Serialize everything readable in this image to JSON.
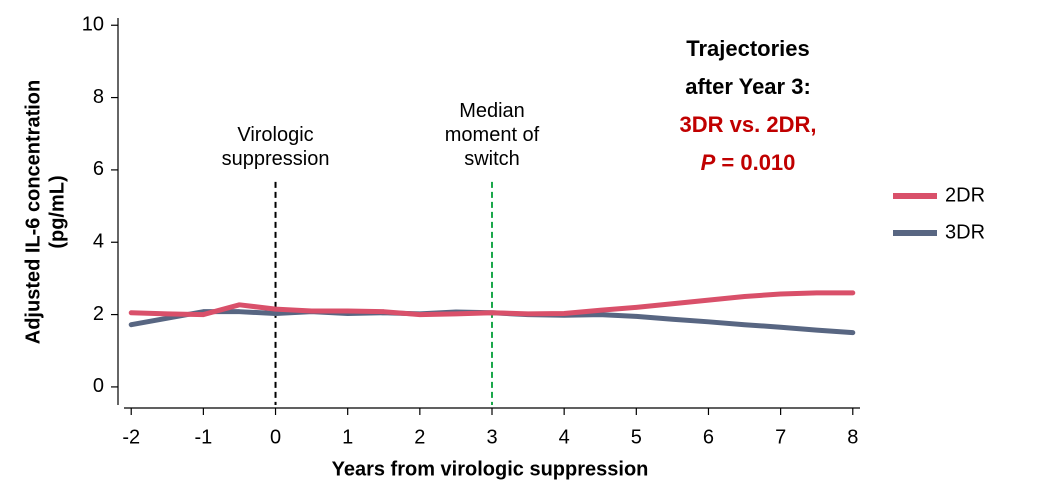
{
  "chart_data": {
    "type": "line",
    "xlabel": "Years from virologic suppression",
    "ylabel": [
      "Adjusted IL-6 concentration",
      "(pg/mL)"
    ],
    "xlim": [
      -2.1,
      8.1
    ],
    "ylim": [
      -0.5,
      10.2
    ],
    "xticks": [
      -2,
      -1,
      0,
      1,
      2,
      3,
      4,
      5,
      6,
      7,
      8
    ],
    "yticks": [
      0,
      2,
      4,
      6,
      8,
      10
    ],
    "x": [
      -2,
      -1.5,
      -1,
      -0.5,
      0,
      0.5,
      1,
      1.5,
      2,
      2.5,
      3,
      3.5,
      4,
      4.5,
      5,
      5.5,
      6,
      6.5,
      7,
      7.5,
      8
    ],
    "series": [
      {
        "name": "2DR",
        "color": "#d9506a",
        "values": [
          2.05,
          2.02,
          2.0,
          2.27,
          2.15,
          2.1,
          2.1,
          2.08,
          2.0,
          2.02,
          2.05,
          2.02,
          2.03,
          2.12,
          2.2,
          2.3,
          2.4,
          2.5,
          2.57,
          2.6,
          2.6
        ]
      },
      {
        "name": "3DR",
        "color": "#586682",
        "values": [
          1.72,
          1.9,
          2.08,
          2.08,
          2.03,
          2.08,
          2.03,
          2.05,
          2.02,
          2.07,
          2.05,
          2.0,
          1.98,
          2.0,
          1.95,
          1.87,
          1.8,
          1.72,
          1.65,
          1.57,
          1.5
        ]
      }
    ],
    "vlines": [
      {
        "x": 0,
        "color": "#000000",
        "label": [
          "Virologic",
          "suppression"
        ]
      },
      {
        "x": 3,
        "color": "#1aa84a",
        "label": [
          "Median",
          "moment of",
          "switch"
        ]
      }
    ],
    "annotation": {
      "lines": [
        "Trajectories",
        "after Year 3:"
      ],
      "highlight": "3DR vs. 2DR,",
      "p_symbol": "P",
      "p_text": "= 0.010",
      "highlight_color": "#c00000"
    },
    "legend": "right"
  }
}
